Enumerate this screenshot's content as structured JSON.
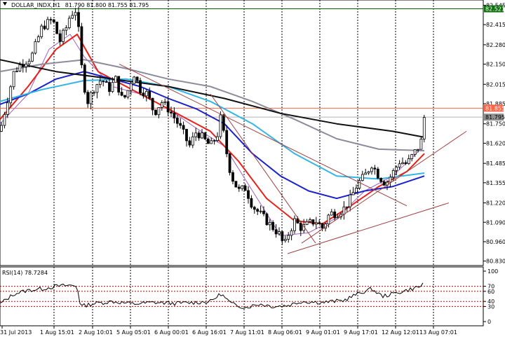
{
  "header": {
    "symbol_title": "DOLLAR_INDX,H1",
    "ohlc": "81.790 81.800 81.755 81.795"
  },
  "colors": {
    "background": "#ffffff",
    "grid": "#000000",
    "hline_top": "#006400",
    "hline_mid": "#ff6347",
    "hline_cur": "#b0b0b0",
    "bull_candle": "#ffffff",
    "bear_candle": "#000000",
    "ma_red": "#e8201a",
    "ma_blue": "#1a22cc",
    "ma_cyan": "#33b5e5",
    "ma_gray": "#8c8c9c",
    "ma_black": "#111111",
    "ma_violet": "#a060c0",
    "trendline": "#a04040",
    "rsi_level": "#c00000",
    "tag_green": "#107010",
    "tag_red": "#ff6347",
    "tag_gray": "#909090"
  },
  "price_axis": {
    "ticks": [
      "82.545",
      "82.415",
      "82.280",
      "82.150",
      "82.015",
      "81.885",
      "81.750",
      "81.620",
      "81.485",
      "81.355",
      "81.220",
      "81.090",
      "80.960",
      "80.830"
    ],
    "tag_top": "82.521",
    "tag_mid": "81.855",
    "tag_current": "81.795"
  },
  "time_axis": {
    "labels": [
      "31 Jul 2013",
      "1 Aug 15:01",
      "2 Aug 10:01",
      "5 Aug 05:01",
      "6 Aug 00:01",
      "6 Aug 16:01",
      "7 Aug 11:01",
      "8 Aug 06:01",
      "9 Aug 01:01",
      "9 Aug 17:01",
      "12 Aug 12:01",
      "13 Aug 07:01"
    ]
  },
  "rsi": {
    "title": "RSI(14) 78.7284",
    "ticks": [
      "100",
      "70",
      "60",
      "40",
      "30",
      "0"
    ]
  },
  "chart_data": {
    "type": "candlestick",
    "y_range": [
      80.8,
      82.58
    ],
    "hlines": [
      82.521,
      81.855,
      81.795
    ],
    "close_path": [
      [
        0,
        81.7
      ],
      [
        10,
        81.9
      ],
      [
        20,
        82.1
      ],
      [
        30,
        82.15
      ],
      [
        45,
        82.2
      ],
      [
        60,
        82.4
      ],
      [
        75,
        82.45
      ],
      [
        85,
        82.3
      ],
      [
        95,
        82.4
      ],
      [
        100,
        82.48
      ],
      [
        110,
        82.52
      ],
      [
        113,
        82.3
      ],
      [
        118,
        82.05
      ],
      [
        125,
        81.9
      ],
      [
        135,
        82.0
      ],
      [
        145,
        82.05
      ],
      [
        155,
        81.98
      ],
      [
        165,
        82.05
      ],
      [
        175,
        81.9
      ],
      [
        185,
        82.0
      ],
      [
        190,
        82.1
      ],
      [
        200,
        81.98
      ],
      [
        210,
        81.95
      ],
      [
        220,
        81.82
      ],
      [
        230,
        81.9
      ],
      [
        240,
        81.85
      ],
      [
        250,
        81.78
      ],
      [
        260,
        81.7
      ],
      [
        270,
        81.6
      ],
      [
        280,
        81.7
      ],
      [
        290,
        81.65
      ],
      [
        300,
        81.6
      ],
      [
        310,
        81.68
      ],
      [
        315,
        81.8
      ],
      [
        320,
        81.65
      ],
      [
        325,
        81.5
      ],
      [
        330,
        81.4
      ],
      [
        340,
        81.3
      ],
      [
        350,
        81.32
      ],
      [
        360,
        81.2
      ],
      [
        370,
        81.15
      ],
      [
        380,
        81.1
      ],
      [
        390,
        81.05
      ],
      [
        400,
        81.0
      ],
      [
        405,
        80.92
      ],
      [
        410,
        81.0
      ],
      [
        420,
        81.1
      ],
      [
        430,
        81.05
      ],
      [
        440,
        81.08
      ],
      [
        450,
        81.1
      ],
      [
        460,
        81.05
      ],
      [
        470,
        81.15
      ],
      [
        480,
        81.15
      ],
      [
        490,
        81.18
      ],
      [
        500,
        81.25
      ],
      [
        510,
        81.35
      ],
      [
        520,
        81.4
      ],
      [
        530,
        81.48
      ],
      [
        540,
        81.4
      ],
      [
        550,
        81.35
      ],
      [
        560,
        81.42
      ],
      [
        570,
        81.5
      ],
      [
        580,
        81.48
      ],
      [
        590,
        81.55
      ],
      [
        600,
        81.62
      ],
      [
        605,
        81.8
      ]
    ],
    "moving_averages": [
      {
        "color_key": "ma_violet",
        "points": [
          [
            0,
            81.75
          ],
          [
            40,
            81.95
          ],
          [
            70,
            82.25
          ],
          [
            100,
            82.35
          ],
          [
            120,
            82.2
          ],
          [
            160,
            82.0
          ],
          [
            200,
            81.95
          ],
          [
            240,
            81.85
          ],
          [
            280,
            81.72
          ],
          [
            320,
            81.6
          ],
          [
            360,
            81.3
          ],
          [
            400,
            81.0
          ],
          [
            440,
            81.02
          ],
          [
            480,
            81.12
          ],
          [
            520,
            81.3
          ],
          [
            560,
            81.4
          ],
          [
            600,
            81.58
          ]
        ]
      },
      {
        "color_key": "ma_red",
        "points": [
          [
            0,
            81.78
          ],
          [
            40,
            82.0
          ],
          [
            80,
            82.25
          ],
          [
            110,
            82.35
          ],
          [
            140,
            82.1
          ],
          [
            180,
            82.0
          ],
          [
            220,
            81.9
          ],
          [
            260,
            81.8
          ],
          [
            300,
            81.7
          ],
          [
            340,
            81.5
          ],
          [
            380,
            81.25
          ],
          [
            420,
            81.1
          ],
          [
            460,
            81.08
          ],
          [
            500,
            81.2
          ],
          [
            540,
            81.33
          ],
          [
            580,
            81.43
          ],
          [
            605,
            81.55
          ]
        ]
      },
      {
        "color_key": "ma_blue",
        "points": [
          [
            0,
            81.88
          ],
          [
            40,
            81.95
          ],
          [
            80,
            82.05
          ],
          [
            120,
            82.1
          ],
          [
            160,
            82.05
          ],
          [
            200,
            82.0
          ],
          [
            240,
            81.92
          ],
          [
            280,
            81.85
          ],
          [
            320,
            81.75
          ],
          [
            360,
            81.55
          ],
          [
            400,
            81.4
          ],
          [
            440,
            81.3
          ],
          [
            480,
            81.25
          ],
          [
            520,
            81.3
          ],
          [
            560,
            81.33
          ],
          [
            605,
            81.4
          ]
        ]
      },
      {
        "color_key": "ma_cyan",
        "points": [
          [
            0,
            81.9
          ],
          [
            60,
            81.98
          ],
          [
            120,
            82.04
          ],
          [
            180,
            82.05
          ],
          [
            240,
            82.0
          ],
          [
            300,
            81.9
          ],
          [
            360,
            81.75
          ],
          [
            420,
            81.55
          ],
          [
            480,
            81.4
          ],
          [
            540,
            81.38
          ],
          [
            605,
            81.42
          ]
        ]
      },
      {
        "color_key": "ma_gray",
        "points": [
          [
            0,
            82.1
          ],
          [
            60,
            82.15
          ],
          [
            120,
            82.18
          ],
          [
            180,
            82.12
          ],
          [
            240,
            82.05
          ],
          [
            300,
            82.0
          ],
          [
            360,
            81.9
          ],
          [
            420,
            81.78
          ],
          [
            480,
            81.65
          ],
          [
            540,
            81.58
          ],
          [
            605,
            81.57
          ]
        ]
      },
      {
        "color_key": "ma_black",
        "points": [
          [
            0,
            82.18
          ],
          [
            80,
            82.1
          ],
          [
            160,
            82.05
          ],
          [
            240,
            82.0
          ],
          [
            320,
            81.92
          ],
          [
            400,
            81.82
          ],
          [
            480,
            81.75
          ],
          [
            560,
            81.7
          ],
          [
            605,
            81.66
          ]
        ]
      }
    ],
    "trendlines": [
      [
        [
          170,
          82.15
        ],
        [
          580,
          81.2
        ]
      ],
      [
        [
          410,
          80.88
        ],
        [
          640,
          81.22
        ]
      ],
      [
        [
          430,
          80.95
        ],
        [
          665,
          81.7
        ]
      ],
      [
        [
          300,
          81.95
        ],
        [
          450,
          80.95
        ]
      ]
    ],
    "rsi_levels": [
      70,
      60,
      40,
      30
    ],
    "rsi_path": [
      [
        0,
        35
      ],
      [
        20,
        55
      ],
      [
        40,
        62
      ],
      [
        60,
        65
      ],
      [
        80,
        70
      ],
      [
        100,
        72
      ],
      [
        110,
        70
      ],
      [
        115,
        30
      ],
      [
        130,
        35
      ],
      [
        160,
        40
      ],
      [
        190,
        35
      ],
      [
        220,
        38
      ],
      [
        250,
        36
      ],
      [
        280,
        38
      ],
      [
        300,
        40
      ],
      [
        315,
        55
      ],
      [
        330,
        35
      ],
      [
        350,
        28
      ],
      [
        370,
        35
      ],
      [
        390,
        30
      ],
      [
        410,
        32
      ],
      [
        430,
        40
      ],
      [
        460,
        38
      ],
      [
        490,
        42
      ],
      [
        510,
        55
      ],
      [
        530,
        65
      ],
      [
        545,
        50
      ],
      [
        560,
        55
      ],
      [
        580,
        62
      ],
      [
        600,
        70
      ],
      [
        605,
        78.7
      ]
    ]
  }
}
